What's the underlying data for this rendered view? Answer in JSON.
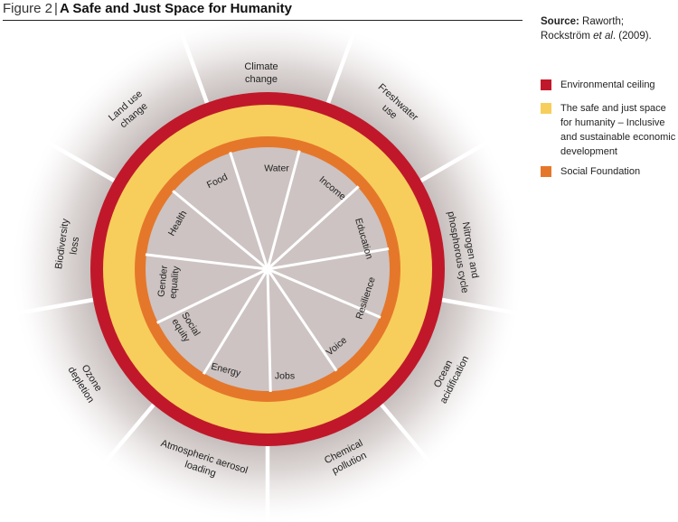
{
  "figure": {
    "label": "Figure 2",
    "separator": "|",
    "title": "A Safe and Just Space for Humanity"
  },
  "source": {
    "label": "Source:",
    "line1": " Raworth;",
    "line2_a": "Rockström ",
    "line2_italic": "et al",
    "line2_b": ". (2009)."
  },
  "legend": [
    {
      "text": "Environmental ceiling",
      "color": "#c0182a"
    },
    {
      "text": "The safe and just space for humanity – Inclusive and sustainable economic development",
      "color": "#f7ce5b"
    },
    {
      "text": "Social Foundation",
      "color": "#e5772b"
    }
  ],
  "environmental_boundaries": [
    [
      "Climate",
      "change"
    ],
    [
      "Freshwater",
      "use"
    ],
    [
      "Nitrogen and",
      "phosphorous cycle"
    ],
    [
      "Ocean",
      "acidification"
    ],
    [
      "Chemical",
      "pollution"
    ],
    [
      "Atmospheric aerosol",
      "loading"
    ],
    [
      "Ozone",
      "depletion"
    ],
    [
      "Biodiversity",
      "loss"
    ],
    [
      "Land use",
      "change"
    ]
  ],
  "social_dimensions": [
    [
      "Water"
    ],
    [
      "Income"
    ],
    [
      "Education"
    ],
    [
      "Resilience"
    ],
    [
      "Voice"
    ],
    [
      "Jobs"
    ],
    [
      "Energy"
    ],
    [
      "Social",
      "equity"
    ],
    [
      "Gender",
      "equality"
    ],
    [
      "Health"
    ],
    [
      "Food"
    ]
  ],
  "colors": {
    "ceiling": "#c0182a",
    "safe_space": "#f7ce5b",
    "foundation": "#e5772b",
    "inner": "#ccc3c2",
    "halo": "#a99d9b"
  }
}
